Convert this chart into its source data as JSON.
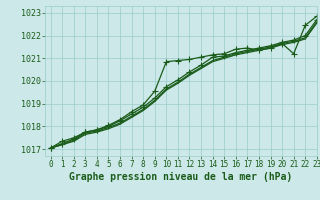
{
  "title": "Graphe pression niveau de la mer (hPa)",
  "bg_color": "#cce8e8",
  "grid_color": "#99cccc",
  "line_color": "#1a5c1a",
  "text_color": "#1a5c1a",
  "xlim": [
    -0.5,
    23
  ],
  "ylim": [
    1016.7,
    1023.3
  ],
  "xticks": [
    0,
    1,
    2,
    3,
    4,
    5,
    6,
    7,
    8,
    9,
    10,
    11,
    12,
    13,
    14,
    15,
    16,
    17,
    18,
    19,
    20,
    21,
    22,
    23
  ],
  "yticks": [
    1017,
    1018,
    1019,
    1020,
    1021,
    1022,
    1023
  ],
  "series": [
    [
      1017.05,
      1017.35,
      1017.5,
      1017.75,
      1017.85,
      1018.05,
      1018.3,
      1018.65,
      1018.95,
      1019.55,
      1020.85,
      1020.9,
      1020.95,
      1021.05,
      1021.15,
      1021.2,
      1021.4,
      1021.45,
      1021.35,
      1021.45,
      1021.65,
      1021.2,
      1022.45,
      1022.85
    ],
    [
      1017.05,
      1017.25,
      1017.45,
      1017.75,
      1017.85,
      1018.0,
      1018.25,
      1018.55,
      1018.85,
      1019.25,
      1019.75,
      1020.05,
      1020.4,
      1020.7,
      1021.05,
      1021.1,
      1021.25,
      1021.35,
      1021.45,
      1021.55,
      1021.7,
      1021.8,
      1022.0,
      1022.7
    ],
    [
      1017.05,
      1017.2,
      1017.4,
      1017.7,
      1017.8,
      1017.95,
      1018.15,
      1018.45,
      1018.75,
      1019.15,
      1019.65,
      1019.95,
      1020.3,
      1020.6,
      1020.9,
      1021.05,
      1021.2,
      1021.3,
      1021.4,
      1021.5,
      1021.65,
      1021.75,
      1021.9,
      1022.6
    ],
    [
      1017.05,
      1017.2,
      1017.35,
      1017.65,
      1017.75,
      1017.9,
      1018.1,
      1018.4,
      1018.7,
      1019.1,
      1019.6,
      1019.9,
      1020.25,
      1020.55,
      1020.85,
      1021.0,
      1021.15,
      1021.25,
      1021.35,
      1021.45,
      1021.6,
      1021.7,
      1021.85,
      1022.55
    ]
  ],
  "marker_series": [
    0,
    1
  ],
  "marker": "+",
  "marker_size": 4,
  "linewidth": 0.9,
  "xlabel_fontsize": 7,
  "tick_fontsize": 5.5
}
